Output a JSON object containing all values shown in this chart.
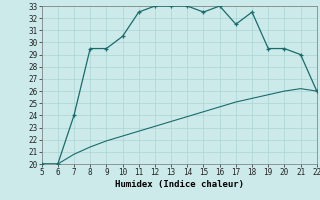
{
  "xlabel": "Humidex (Indice chaleur)",
  "x_data": [
    5,
    6,
    7,
    8,
    9,
    10,
    11,
    12,
    13,
    14,
    15,
    16,
    17,
    18,
    19,
    20,
    21,
    22
  ],
  "y_curve": [
    20.0,
    20.0,
    24.0,
    29.5,
    29.5,
    30.5,
    32.5,
    33.0,
    33.0,
    33.0,
    32.5,
    33.0,
    31.5,
    32.5,
    29.5,
    29.5,
    29.0,
    26.0
  ],
  "y_line": [
    20.0,
    20.0,
    20.8,
    21.4,
    21.9,
    22.3,
    22.7,
    23.1,
    23.5,
    23.9,
    24.3,
    24.7,
    25.1,
    25.4,
    25.7,
    26.0,
    26.2,
    26.0
  ],
  "ylim": [
    20,
    33
  ],
  "xlim": [
    5,
    22
  ],
  "yticks": [
    20,
    21,
    22,
    23,
    24,
    25,
    26,
    27,
    28,
    29,
    30,
    31,
    32,
    33
  ],
  "xticks": [
    5,
    6,
    7,
    8,
    9,
    10,
    11,
    12,
    13,
    14,
    15,
    16,
    17,
    18,
    19,
    20,
    21,
    22
  ],
  "line_color": "#1a6b6b",
  "bg_color": "#cceaea",
  "grid_color": "#aad4d4",
  "tick_fontsize": 5.5,
  "label_fontsize": 6.5
}
